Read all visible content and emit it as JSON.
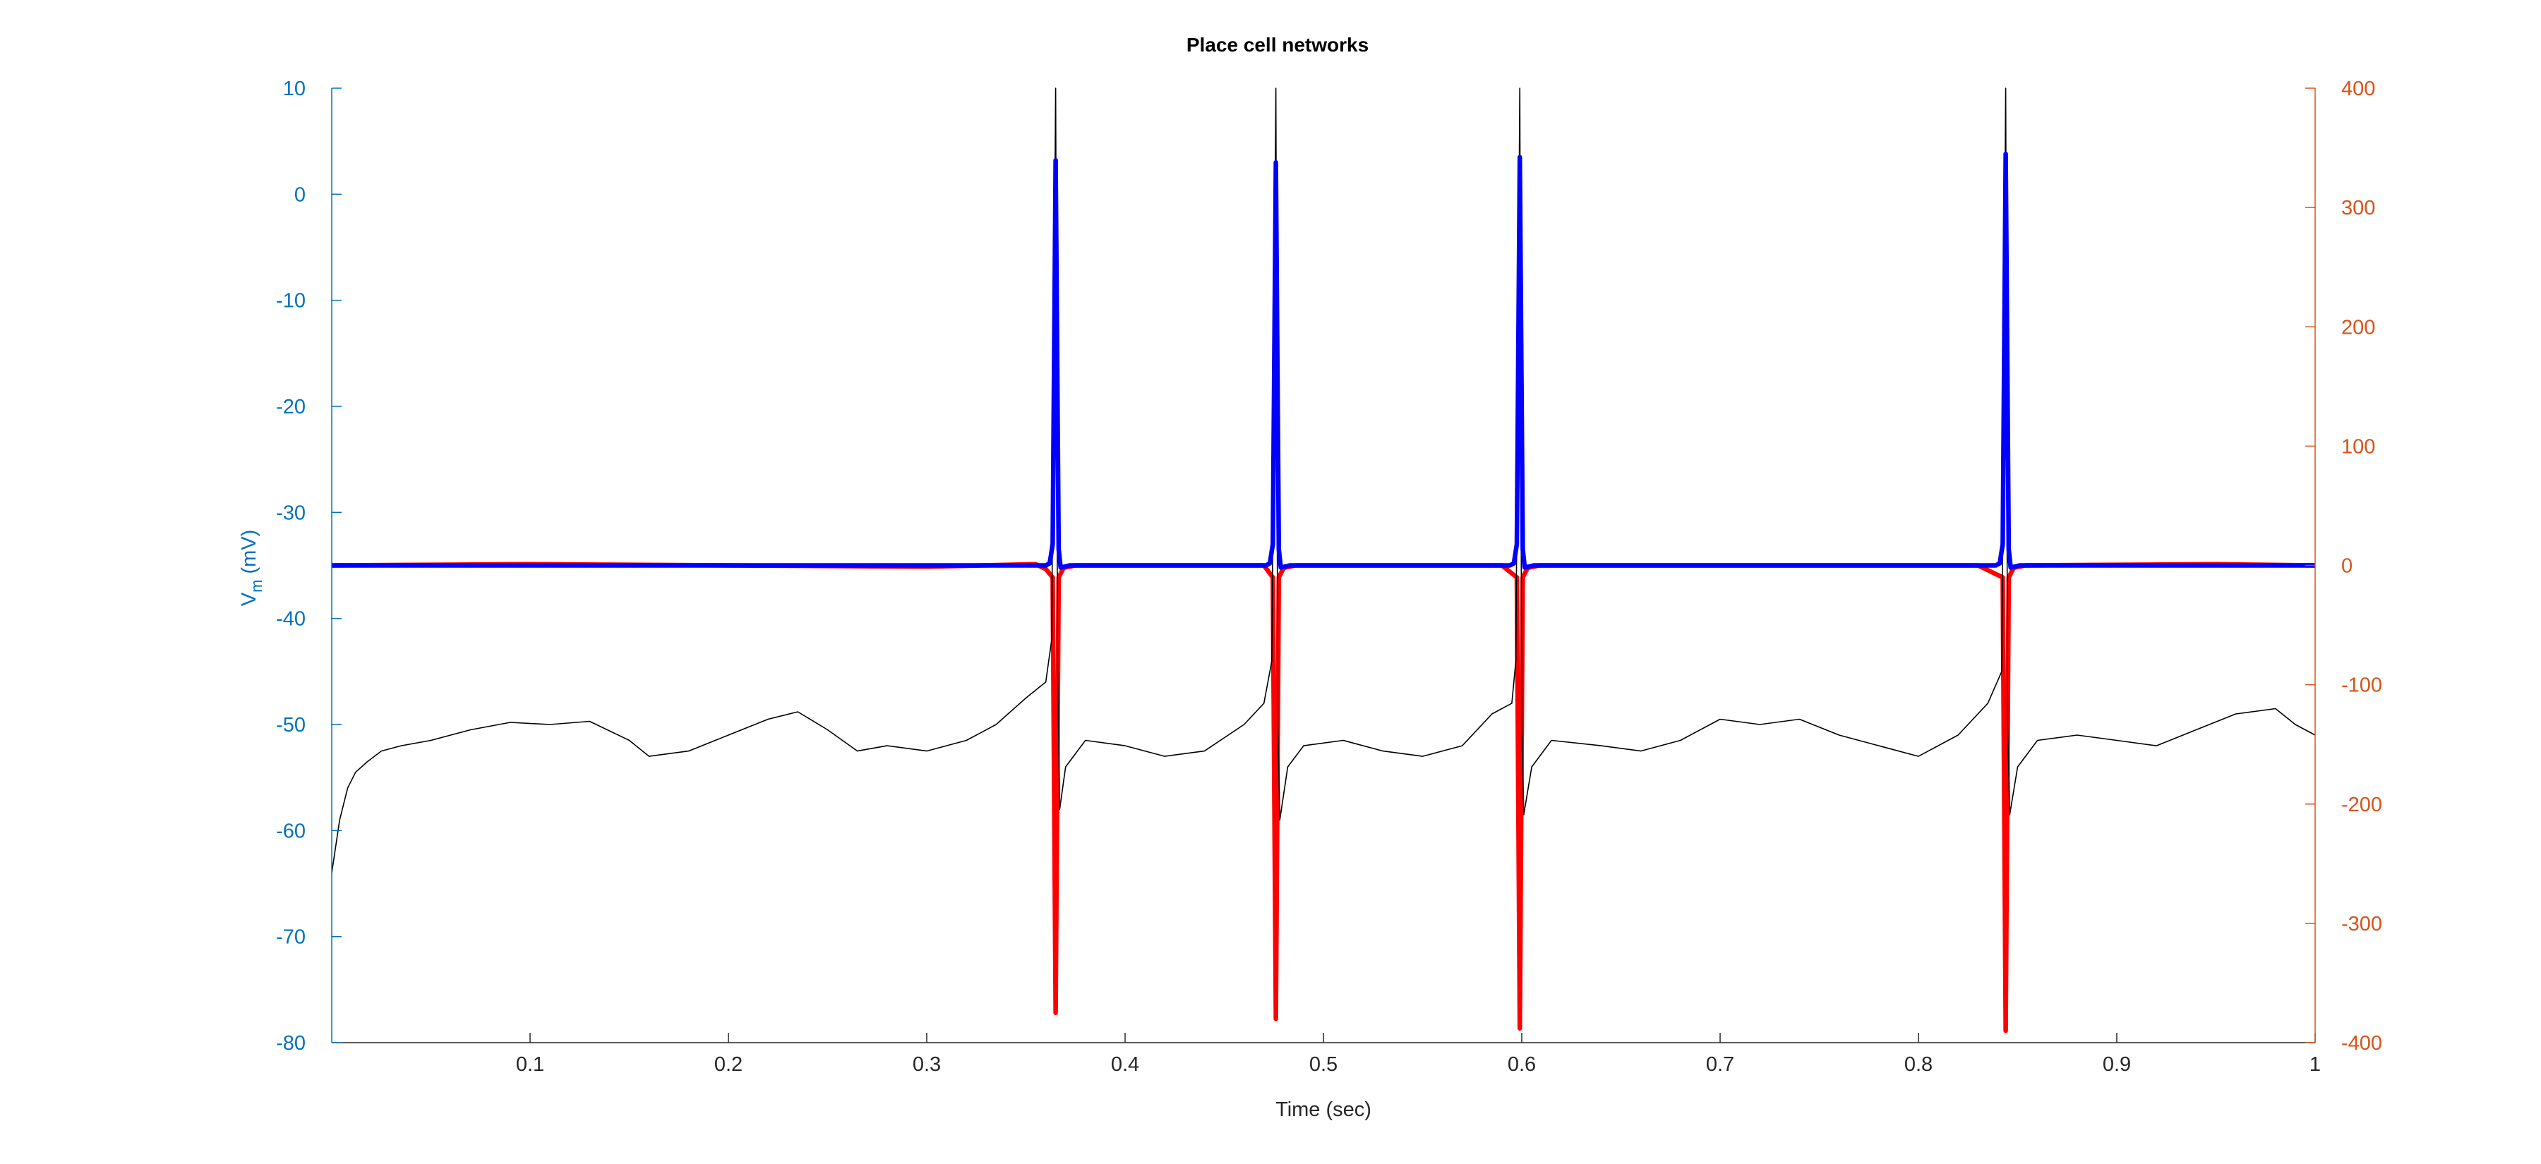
{
  "chart_data": {
    "type": "line",
    "title": "Place cell networks",
    "xlabel": "Time (sec)",
    "ylabel_left": {
      "main": "V",
      "sub": "m",
      "unit": " (mV)"
    },
    "ylabel_right": "",
    "xlim": [
      0,
      1
    ],
    "ylim_left": [
      -80,
      10
    ],
    "ylim_right": [
      -400,
      400
    ],
    "xticks": [
      "0.1",
      "0.2",
      "0.3",
      "0.4",
      "0.5",
      "0.6",
      "0.7",
      "0.8",
      "0.9",
      "1"
    ],
    "yticks_left": [
      "10",
      "0",
      "-10",
      "-20",
      "-30",
      "-40",
      "-50",
      "-60",
      "-70",
      "-80"
    ],
    "yticks_right": [
      "400",
      "300",
      "200",
      "100",
      "0",
      "-100",
      "-200",
      "-300",
      "-400"
    ],
    "grid": false,
    "colors": {
      "left_axis": "#0072BD",
      "right_axis": "#D95319",
      "membrane": "#000000",
      "blue_series": "#0000FF",
      "red_series": "#FF0000",
      "title": "#000000"
    },
    "spike_times": [
      0.365,
      0.476,
      0.599,
      0.844
    ],
    "series": [
      {
        "axis": "left",
        "color": "#000000",
        "points": [
          [
            0.0,
            -64
          ],
          [
            0.004,
            -59
          ],
          [
            0.008,
            -56
          ],
          [
            0.012,
            -54.5
          ],
          [
            0.018,
            -53.5
          ],
          [
            0.025,
            -52.5
          ],
          [
            0.035,
            -52
          ],
          [
            0.05,
            -51.5
          ],
          [
            0.07,
            -50.5
          ],
          [
            0.09,
            -49.8
          ],
          [
            0.11,
            -50
          ],
          [
            0.13,
            -49.7
          ],
          [
            0.15,
            -51.5
          ],
          [
            0.16,
            -53
          ],
          [
            0.18,
            -52.5
          ],
          [
            0.2,
            -51
          ],
          [
            0.22,
            -49.5
          ],
          [
            0.235,
            -48.8
          ],
          [
            0.25,
            -50.5
          ],
          [
            0.265,
            -52.5
          ],
          [
            0.28,
            -52
          ],
          [
            0.3,
            -52.5
          ],
          [
            0.32,
            -51.5
          ],
          [
            0.335,
            -50
          ],
          [
            0.35,
            -47.5
          ],
          [
            0.36,
            -46
          ],
          [
            0.363,
            -42
          ],
          [
            0.365,
            10
          ],
          [
            0.366,
            -45
          ],
          [
            0.367,
            -58
          ],
          [
            0.37,
            -54
          ],
          [
            0.38,
            -51.5
          ],
          [
            0.4,
            -52
          ],
          [
            0.42,
            -53
          ],
          [
            0.44,
            -52.5
          ],
          [
            0.46,
            -50
          ],
          [
            0.47,
            -48
          ],
          [
            0.474,
            -44
          ],
          [
            0.476,
            10
          ],
          [
            0.477,
            -50
          ],
          [
            0.478,
            -59
          ],
          [
            0.482,
            -54
          ],
          [
            0.49,
            -52
          ],
          [
            0.51,
            -51.5
          ],
          [
            0.53,
            -52.5
          ],
          [
            0.55,
            -53
          ],
          [
            0.57,
            -52
          ],
          [
            0.585,
            -49
          ],
          [
            0.595,
            -48
          ],
          [
            0.597,
            -44
          ],
          [
            0.599,
            10
          ],
          [
            0.6,
            -50
          ],
          [
            0.601,
            -58.5
          ],
          [
            0.605,
            -54
          ],
          [
            0.615,
            -51.5
          ],
          [
            0.64,
            -52
          ],
          [
            0.66,
            -52.5
          ],
          [
            0.68,
            -51.5
          ],
          [
            0.7,
            -49.5
          ],
          [
            0.72,
            -50
          ],
          [
            0.74,
            -49.5
          ],
          [
            0.76,
            -51
          ],
          [
            0.78,
            -52
          ],
          [
            0.8,
            -53
          ],
          [
            0.82,
            -51
          ],
          [
            0.835,
            -48
          ],
          [
            0.842,
            -45
          ],
          [
            0.844,
            10
          ],
          [
            0.845,
            -50
          ],
          [
            0.846,
            -58.5
          ],
          [
            0.85,
            -54
          ],
          [
            0.86,
            -51.5
          ],
          [
            0.88,
            -51
          ],
          [
            0.9,
            -51.5
          ],
          [
            0.92,
            -52
          ],
          [
            0.94,
            -50.5
          ],
          [
            0.96,
            -49
          ],
          [
            0.98,
            -48.5
          ],
          [
            0.99,
            -50
          ],
          [
            1.0,
            -51
          ]
        ]
      },
      {
        "axis": "left",
        "color": "#0000FF",
        "points": [
          [
            0.0,
            -35
          ],
          [
            0.36,
            -35
          ],
          [
            0.362,
            -34.8
          ],
          [
            0.3635,
            -33
          ],
          [
            0.365,
            3.2
          ],
          [
            0.3665,
            -33.5
          ],
          [
            0.3675,
            -35.2
          ],
          [
            0.372,
            -35
          ],
          [
            0.471,
            -35
          ],
          [
            0.473,
            -34.8
          ],
          [
            0.4745,
            -33
          ],
          [
            0.476,
            3
          ],
          [
            0.4775,
            -33.5
          ],
          [
            0.4785,
            -35.2
          ],
          [
            0.483,
            -35
          ],
          [
            0.594,
            -35
          ],
          [
            0.596,
            -34.8
          ],
          [
            0.5975,
            -33
          ],
          [
            0.599,
            3.5
          ],
          [
            0.6005,
            -33.5
          ],
          [
            0.6015,
            -35.2
          ],
          [
            0.606,
            -35
          ],
          [
            0.839,
            -35
          ],
          [
            0.841,
            -34.8
          ],
          [
            0.8425,
            -33
          ],
          [
            0.844,
            3.8
          ],
          [
            0.8455,
            -33.5
          ],
          [
            0.8465,
            -35.2
          ],
          [
            0.851,
            -35
          ],
          [
            1.0,
            -35
          ]
        ]
      },
      {
        "axis": "right",
        "color": "#FF0000",
        "points": [
          [
            0.0,
            0
          ],
          [
            0.1,
            1
          ],
          [
            0.2,
            0
          ],
          [
            0.3,
            -1
          ],
          [
            0.355,
            1
          ],
          [
            0.36,
            -3
          ],
          [
            0.3635,
            -10
          ],
          [
            0.365,
            -375
          ],
          [
            0.3665,
            -10
          ],
          [
            0.369,
            -2
          ],
          [
            0.375,
            0
          ],
          [
            0.47,
            0
          ],
          [
            0.4745,
            -10
          ],
          [
            0.476,
            -380
          ],
          [
            0.4775,
            -10
          ],
          [
            0.48,
            -2
          ],
          [
            0.486,
            0
          ],
          [
            0.59,
            0
          ],
          [
            0.5975,
            -10
          ],
          [
            0.599,
            -388
          ],
          [
            0.6005,
            -10
          ],
          [
            0.603,
            -2
          ],
          [
            0.609,
            0
          ],
          [
            0.83,
            0
          ],
          [
            0.8425,
            -10
          ],
          [
            0.844,
            -390
          ],
          [
            0.8455,
            -10
          ],
          [
            0.848,
            -2
          ],
          [
            0.854,
            0
          ],
          [
            0.95,
            1
          ],
          [
            1.0,
            0
          ]
        ]
      }
    ]
  }
}
